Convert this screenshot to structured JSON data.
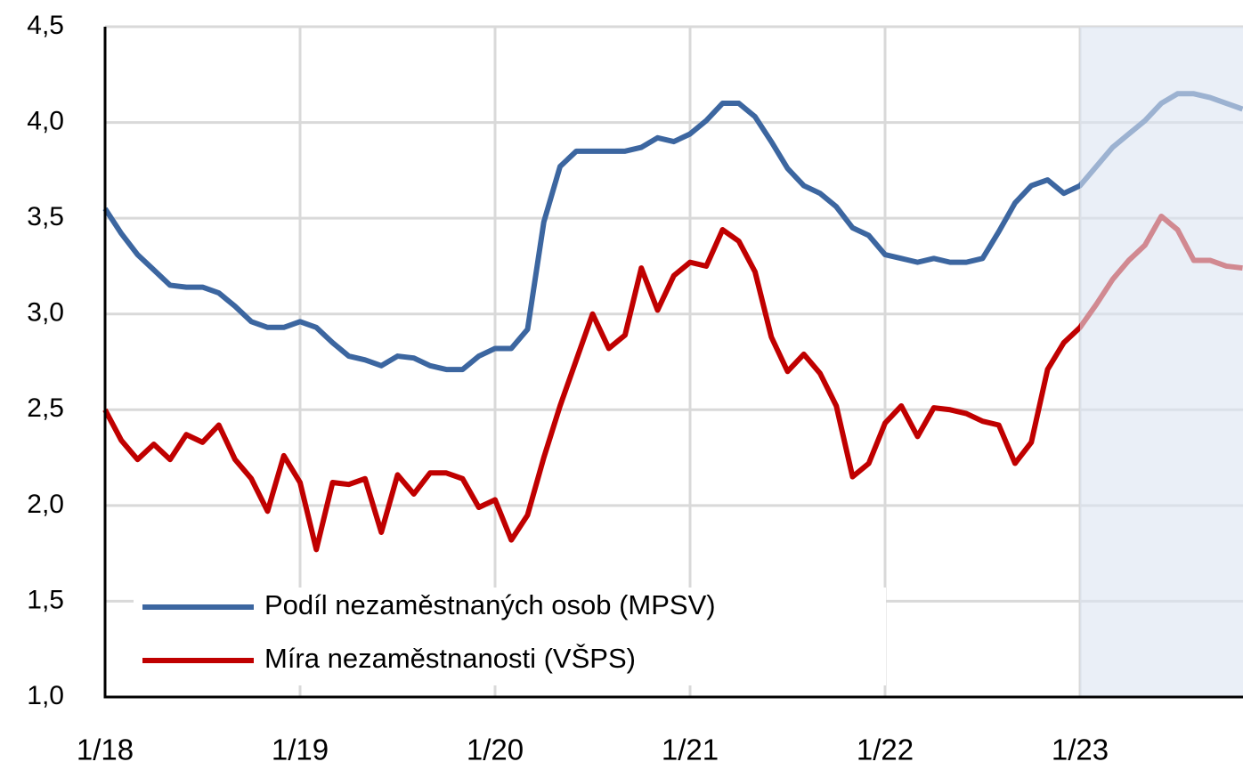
{
  "chart_data": {
    "type": "line",
    "categories": [
      "1/18",
      null,
      null,
      null,
      null,
      null,
      null,
      null,
      null,
      null,
      null,
      null,
      "1/19",
      null,
      null,
      null,
      null,
      null,
      null,
      null,
      null,
      null,
      null,
      null,
      "1/20",
      null,
      null,
      null,
      null,
      null,
      null,
      null,
      null,
      null,
      null,
      null,
      "1/21",
      null,
      null,
      null,
      null,
      null,
      null,
      null,
      null,
      null,
      null,
      null,
      "1/22",
      null,
      null,
      null,
      null,
      null,
      null,
      null,
      null,
      null,
      null,
      null,
      "1/23",
      null,
      null,
      null,
      null,
      null,
      null,
      null,
      null,
      null,
      null
    ],
    "series": [
      {
        "name": "Podíl nezaměstnaných osob (MPSV)",
        "color": "#3c66a0",
        "values": [
          3.55,
          3.42,
          3.31,
          3.23,
          3.15,
          3.14,
          3.14,
          3.11,
          3.04,
          2.96,
          2.93,
          2.93,
          2.96,
          2.93,
          2.85,
          2.78,
          2.76,
          2.73,
          2.78,
          2.77,
          2.73,
          2.71,
          2.71,
          2.78,
          2.82,
          2.82,
          2.92,
          3.48,
          3.77,
          3.85,
          3.85,
          3.85,
          3.85,
          3.87,
          3.92,
          3.9,
          3.94,
          4.01,
          4.1,
          4.1,
          4.03,
          3.9,
          3.76,
          3.67,
          3.63,
          3.56,
          3.45,
          3.41,
          3.31,
          3.29,
          3.27,
          3.29,
          3.27,
          3.27,
          3.29,
          3.43,
          3.58,
          3.67,
          3.7,
          3.63,
          3.67,
          3.77,
          3.87,
          3.94,
          4.01,
          4.1,
          4.15,
          4.15,
          4.13,
          4.1,
          4.07
        ]
      },
      {
        "name": "Míra nezaměstnanosti (VŠPS)",
        "color": "#c00000",
        "values": [
          2.5,
          2.34,
          2.24,
          2.32,
          2.24,
          2.37,
          2.33,
          2.42,
          2.24,
          2.14,
          1.97,
          2.26,
          2.12,
          1.77,
          2.12,
          2.11,
          2.14,
          1.86,
          2.16,
          2.06,
          2.17,
          2.17,
          2.14,
          1.99,
          2.03,
          1.82,
          1.95,
          2.25,
          2.52,
          2.76,
          3.0,
          2.82,
          2.89,
          3.24,
          3.02,
          3.2,
          3.27,
          3.25,
          3.44,
          3.38,
          3.22,
          2.88,
          2.7,
          2.79,
          2.69,
          2.52,
          2.15,
          2.22,
          2.43,
          2.52,
          2.36,
          2.51,
          2.5,
          2.48,
          2.44,
          2.42,
          2.22,
          2.33,
          2.71,
          2.85,
          2.93,
          3.05,
          3.18,
          3.28,
          3.36,
          3.51,
          3.44,
          3.28,
          3.28,
          3.25,
          3.24
        ]
      }
    ],
    "ylim": [
      1.0,
      4.5
    ],
    "yticks": [
      {
        "value": 1.0,
        "label": "1,0"
      },
      {
        "value": 1.5,
        "label": "1,5"
      },
      {
        "value": 2.0,
        "label": "2,0"
      },
      {
        "value": 2.5,
        "label": "2,5"
      },
      {
        "value": 3.0,
        "label": "3,0"
      },
      {
        "value": 3.5,
        "label": "3,5"
      },
      {
        "value": 4.0,
        "label": "4,0"
      },
      {
        "value": 4.5,
        "label": "4,5"
      }
    ],
    "grid": true,
    "legend": "lower left",
    "forecast_from": "1/23",
    "forecast_shade_color": "#dce5f1"
  }
}
